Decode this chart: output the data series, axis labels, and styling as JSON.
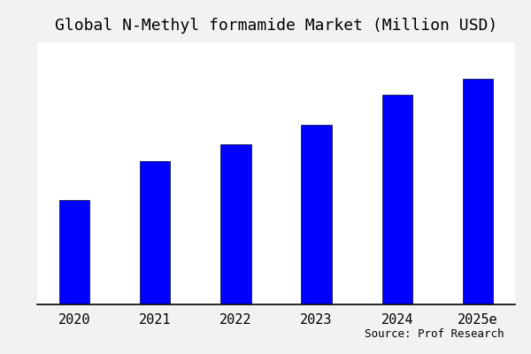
{
  "title": "Global N-Methyl formamide Market (Million USD)",
  "categories": [
    "2020",
    "2021",
    "2022",
    "2023",
    "2024",
    "2025e"
  ],
  "values": [
    38,
    52,
    58,
    65,
    76,
    82
  ],
  "bar_color": "#0000FF",
  "background_color": "#f2f2f2",
  "plot_bg_color": "#ffffff",
  "source_text": "Source: Prof Research",
  "title_fontsize": 13,
  "tick_fontsize": 11,
  "source_fontsize": 9,
  "ylim": [
    0,
    95
  ],
  "bar_width": 0.38
}
